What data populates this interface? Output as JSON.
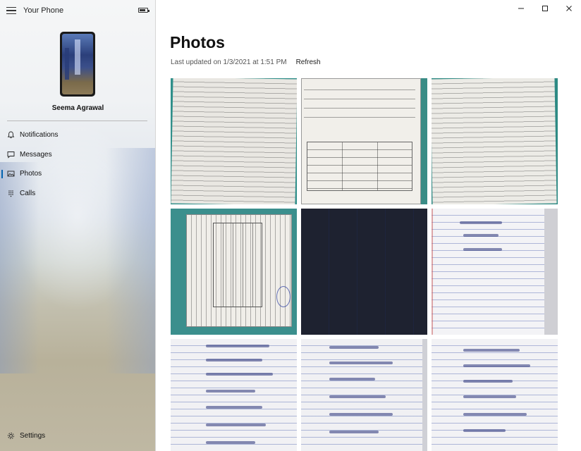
{
  "app": {
    "title": "Your Phone"
  },
  "user": {
    "name": "Seema Agrawal"
  },
  "nav": {
    "items": [
      {
        "label": "Notifications",
        "icon": "bell-icon"
      },
      {
        "label": "Messages",
        "icon": "message-icon"
      },
      {
        "label": "Photos",
        "icon": "photos-icon",
        "selected": true
      },
      {
        "label": "Calls",
        "icon": "dialpad-icon"
      }
    ],
    "settings_label": "Settings"
  },
  "main": {
    "title": "Photos",
    "last_updated": "Last updated on 1/3/2021 at 1:51 PM",
    "refresh_label": "Refresh"
  },
  "photos": [
    "warranty-page-text",
    "warranty-card-form",
    "warranty-page-text-2",
    "warranty-table-rotated",
    "blue-form",
    "notebook-page-1",
    "notebook-page-2",
    "notebook-page-3",
    "notebook-page-4"
  ],
  "colors": {
    "accent": "#0063b1",
    "background": "#ffffff"
  }
}
